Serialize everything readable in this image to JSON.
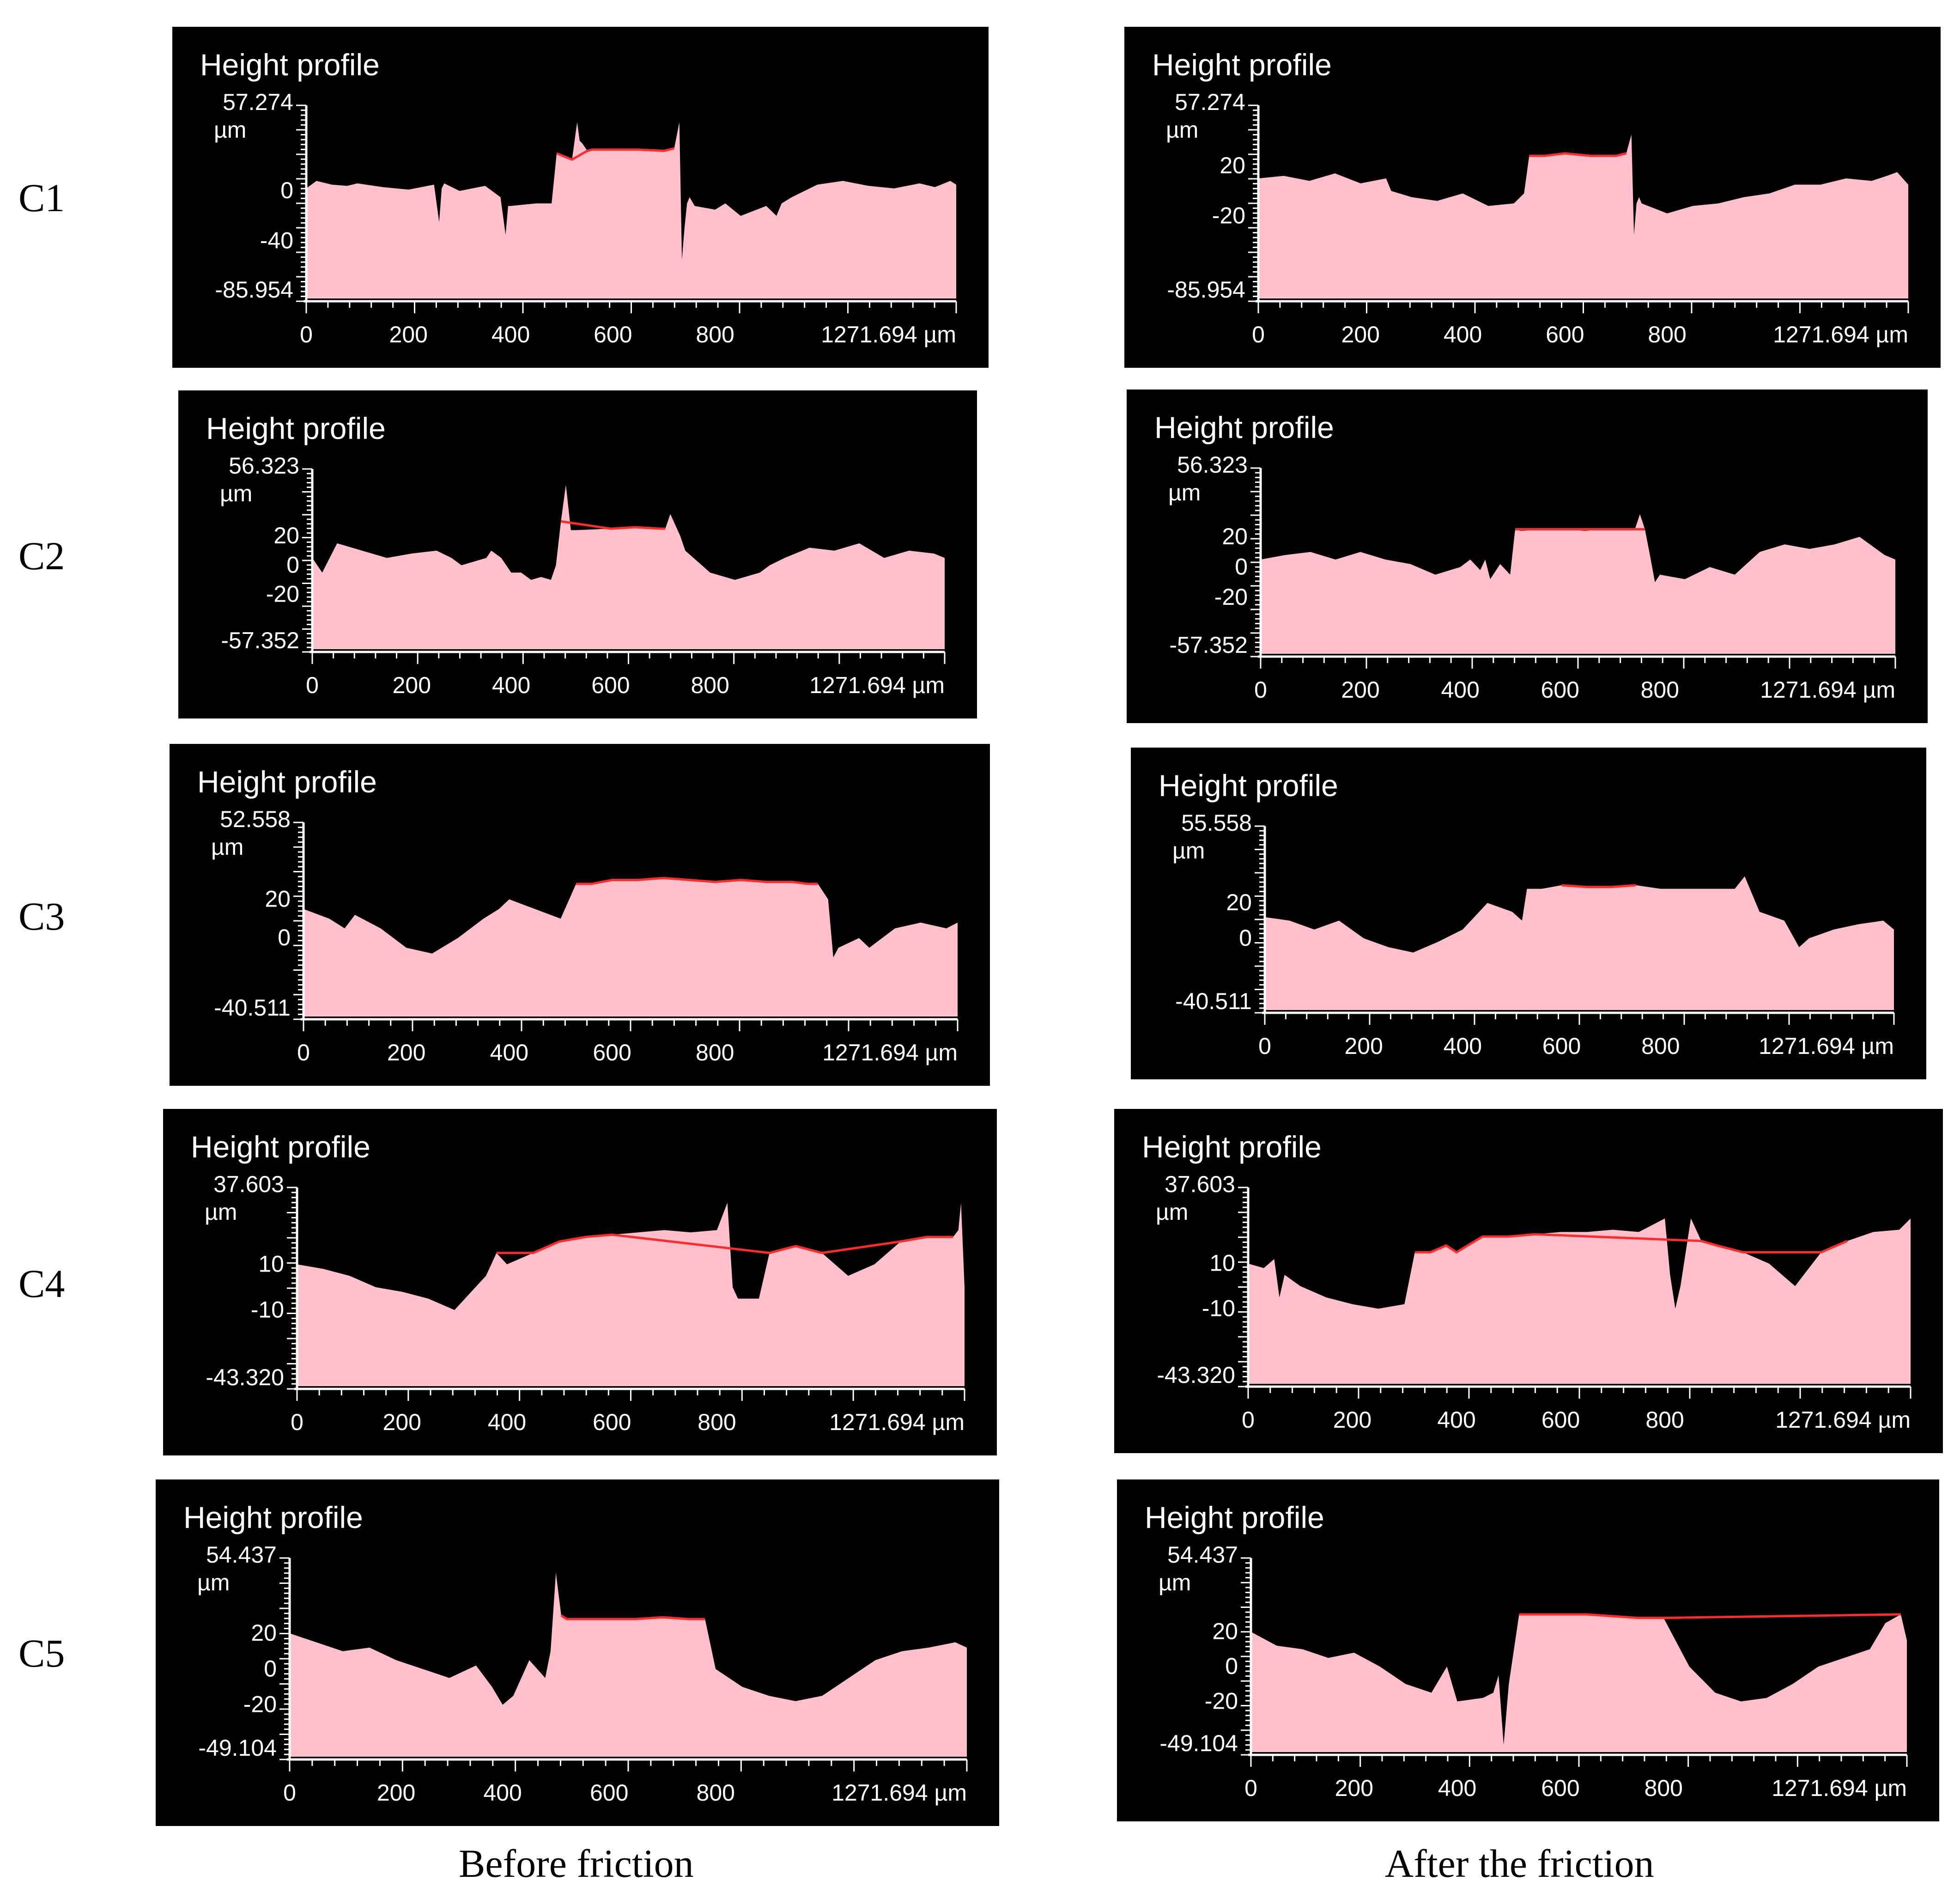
{
  "captions": {
    "before": "Before friction",
    "after": "After the friction"
  },
  "rows": [
    "C1",
    "C2",
    "C3",
    "C4",
    "C5"
  ],
  "colors": {
    "background": "#000000",
    "fill": "#ffc0cb",
    "trace": "#ff2a2a",
    "axis": "#ffffff"
  },
  "chart_data": [
    {
      "id": "c1-before",
      "row": "C1",
      "column": "Before friction",
      "type": "area",
      "title": "Height profile",
      "xlim": [
        0,
        1271.694
      ],
      "x_ticks": [
        "0",
        "200",
        "400",
        "600",
        "800",
        "1271.694 µm"
      ],
      "ylim": [
        -85.954,
        57.274
      ],
      "y_ticks": [
        "57.274",
        "0",
        "-40",
        "-85.954"
      ],
      "y_unit": "µm",
      "x": [
        0,
        20,
        50,
        80,
        100,
        150,
        200,
        250,
        260,
        265,
        270,
        300,
        350,
        380,
        390,
        395,
        400,
        450,
        480,
        490,
        520,
        530,
        535,
        540,
        550,
        560,
        600,
        650,
        700,
        720,
        730,
        735,
        740,
        745,
        750,
        760,
        800,
        820,
        850,
        900,
        920,
        930,
        950,
        1000,
        1050,
        1100,
        1150,
        1200,
        1230,
        1260,
        1271.694
      ],
      "y": [
        2,
        8,
        5,
        4,
        6,
        3,
        1,
        5,
        -25,
        2,
        6,
        0,
        4,
        -5,
        -35,
        -12,
        -12,
        -10,
        -10,
        30,
        25,
        55,
        40,
        38,
        32,
        33,
        33,
        33,
        32,
        34,
        55,
        -55,
        -30,
        -10,
        -5,
        -12,
        -15,
        -10,
        -20,
        -12,
        -20,
        -10,
        -5,
        5,
        8,
        4,
        2,
        6,
        3,
        8,
        5
      ]
    },
    {
      "id": "c1-after",
      "row": "C1",
      "column": "After the friction",
      "type": "area",
      "title": "Height profile",
      "xlim": [
        0,
        1271.694
      ],
      "x_ticks": [
        "0",
        "200",
        "400",
        "600",
        "800",
        "1271.694 µm"
      ],
      "ylim": [
        -85.954,
        57.274
      ],
      "y_ticks": [
        "57.274",
        "20",
        "-20",
        "-85.954"
      ],
      "y_unit": "µm",
      "x": [
        0,
        50,
        100,
        150,
        200,
        250,
        260,
        300,
        350,
        400,
        450,
        500,
        520,
        530,
        560,
        600,
        650,
        700,
        720,
        730,
        735,
        740,
        745,
        750,
        800,
        850,
        900,
        950,
        1000,
        1050,
        1100,
        1150,
        1200,
        1230,
        1250,
        1271.694
      ],
      "y": [
        10,
        12,
        8,
        14,
        6,
        10,
        0,
        -5,
        -8,
        -2,
        -12,
        -10,
        -2,
        28,
        28,
        30,
        28,
        28,
        30,
        45,
        -35,
        -10,
        -5,
        -10,
        -18,
        -12,
        -10,
        -5,
        -2,
        5,
        5,
        10,
        8,
        12,
        15,
        5
      ]
    },
    {
      "id": "c2-before",
      "row": "C2",
      "column": "Before friction",
      "type": "area",
      "title": "Height profile",
      "xlim": [
        0,
        1271.694
      ],
      "x_ticks": [
        "0",
        "200",
        "400",
        "600",
        "800",
        "1271.694 µm"
      ],
      "ylim": [
        -57.352,
        56.323
      ],
      "y_ticks": [
        "56.323",
        "20",
        "0",
        "-20",
        "-57.352"
      ],
      "y_unit": "µm",
      "x": [
        0,
        20,
        50,
        100,
        150,
        200,
        250,
        280,
        300,
        350,
        360,
        380,
        400,
        420,
        440,
        460,
        480,
        490,
        500,
        510,
        520,
        530,
        600,
        650,
        700,
        710,
        720,
        740,
        750,
        800,
        850,
        900,
        920,
        950,
        1000,
        1050,
        1100,
        1150,
        1200,
        1250,
        1271.694
      ],
      "y": [
        5,
        -5,
        15,
        10,
        5,
        8,
        10,
        5,
        0,
        5,
        10,
        5,
        -5,
        -5,
        -10,
        -8,
        -10,
        0,
        30,
        55,
        24,
        24,
        25,
        26,
        25,
        25,
        35,
        20,
        10,
        -5,
        -10,
        -5,
        0,
        5,
        12,
        10,
        15,
        5,
        10,
        8,
        5
      ]
    },
    {
      "id": "c2-after",
      "row": "C2",
      "column": "After the friction",
      "type": "area",
      "title": "Height profile",
      "xlim": [
        0,
        1271.694
      ],
      "x_ticks": [
        "0",
        "200",
        "400",
        "600",
        "800",
        "1271.694 µm"
      ],
      "ylim": [
        -57.352,
        56.323
      ],
      "y_ticks": [
        "56.323",
        "20",
        "0",
        "-20",
        "-57.352"
      ],
      "y_unit": "µm",
      "x": [
        0,
        50,
        100,
        150,
        200,
        250,
        300,
        350,
        400,
        420,
        440,
        450,
        460,
        480,
        500,
        510,
        520,
        600,
        650,
        700,
        750,
        760,
        770,
        780,
        790,
        800,
        850,
        900,
        950,
        1000,
        1050,
        1100,
        1150,
        1200,
        1250,
        1271.694
      ],
      "y": [
        5,
        8,
        10,
        5,
        10,
        5,
        2,
        -5,
        0,
        5,
        -2,
        5,
        -8,
        2,
        -5,
        25,
        24,
        25,
        24,
        25,
        25,
        35,
        25,
        8,
        -10,
        -5,
        -8,
        0,
        -5,
        10,
        15,
        12,
        15,
        20,
        8,
        5
      ]
    },
    {
      "id": "c3-before",
      "row": "C3",
      "column": "Before friction",
      "type": "area",
      "title": "Height profile",
      "xlim": [
        0,
        1271.694
      ],
      "x_ticks": [
        "0",
        "200",
        "400",
        "600",
        "800",
        "1271.694 µm"
      ],
      "ylim": [
        -40.511,
        52.558
      ],
      "y_ticks": [
        "52.558",
        "20",
        "0",
        "-40.511"
      ],
      "y_unit": "µm",
      "x": [
        0,
        50,
        80,
        100,
        150,
        200,
        250,
        300,
        350,
        380,
        400,
        450,
        500,
        530,
        560,
        600,
        650,
        700,
        750,
        800,
        850,
        900,
        950,
        980,
        1000,
        1020,
        1030,
        1040,
        1080,
        1100,
        1150,
        1200,
        1250,
        1271.694
      ],
      "y": [
        15,
        10,
        5,
        12,
        5,
        -5,
        -8,
        0,
        10,
        15,
        20,
        15,
        10,
        28,
        28,
        30,
        30,
        31,
        30,
        29,
        30,
        29,
        29,
        28,
        28,
        20,
        -10,
        -5,
        0,
        -5,
        5,
        8,
        5,
        8
      ]
    },
    {
      "id": "c3-after",
      "row": "C3",
      "column": "After the friction",
      "type": "area",
      "title": "Height profile",
      "xlim": [
        0,
        1271.694
      ],
      "x_ticks": [
        "0",
        "200",
        "400",
        "600",
        "800",
        "1271.694 µm"
      ],
      "ylim": [
        -40.511,
        55.558
      ],
      "y_ticks": [
        "55.558",
        "20",
        "0",
        "-40.511"
      ],
      "y_unit": "µm",
      "x": [
        0,
        50,
        100,
        150,
        200,
        250,
        300,
        350,
        400,
        450,
        500,
        520,
        530,
        560,
        600,
        650,
        700,
        750,
        800,
        850,
        900,
        950,
        970,
        1000,
        1050,
        1080,
        1100,
        1150,
        1200,
        1250,
        1271.694
      ],
      "y": [
        12,
        10,
        5,
        10,
        0,
        -5,
        -8,
        -2,
        5,
        20,
        15,
        10,
        28,
        28,
        30,
        29,
        29,
        30,
        28,
        28,
        28,
        28,
        35,
        15,
        10,
        -5,
        0,
        5,
        8,
        10,
        5
      ]
    },
    {
      "id": "c4-before",
      "row": "C4",
      "column": "Before friction",
      "type": "area",
      "title": "Height profile",
      "xlim": [
        0,
        1271.694
      ],
      "x_ticks": [
        "0",
        "200",
        "400",
        "600",
        "800",
        "1271.694 µm"
      ],
      "ylim": [
        -43.32,
        37.603
      ],
      "y_ticks": [
        "37.603",
        "10",
        "-10",
        "-43.320"
      ],
      "y_unit": "µm",
      "x": [
        0,
        50,
        100,
        150,
        200,
        250,
        280,
        300,
        320,
        340,
        360,
        380,
        400,
        450,
        500,
        550,
        600,
        650,
        700,
        750,
        800,
        820,
        830,
        840,
        880,
        900,
        950,
        1000,
        1050,
        1100,
        1150,
        1200,
        1250,
        1260,
        1265,
        1271.694
      ],
      "y": [
        10,
        8,
        5,
        0,
        -2,
        -5,
        -8,
        -10,
        -5,
        0,
        5,
        15,
        10,
        15,
        20,
        22,
        23,
        24,
        25,
        24,
        25,
        37,
        0,
        -5,
        -5,
        15,
        18,
        15,
        5,
        10,
        20,
        22,
        22,
        25,
        37,
        0
      ]
    },
    {
      "id": "c4-after",
      "row": "C4",
      "column": "After the friction",
      "type": "area",
      "title": "Height profile",
      "xlim": [
        0,
        1271.694
      ],
      "x_ticks": [
        "0",
        "200",
        "400",
        "600",
        "800",
        "1271.694 µm"
      ],
      "ylim": [
        -43.32,
        37.603
      ],
      "y_ticks": [
        "37.603",
        "10",
        "-10",
        "-43.320"
      ],
      "y_unit": "µm",
      "x": [
        0,
        30,
        50,
        60,
        70,
        100,
        150,
        200,
        250,
        300,
        320,
        350,
        380,
        400,
        450,
        500,
        550,
        600,
        650,
        700,
        750,
        800,
        810,
        820,
        830,
        850,
        870,
        900,
        950,
        1000,
        1050,
        1100,
        1150,
        1200,
        1250,
        1271.694
      ],
      "y": [
        10,
        8,
        12,
        -5,
        5,
        0,
        -5,
        -8,
        -10,
        -8,
        15,
        15,
        18,
        15,
        22,
        22,
        23,
        24,
        24,
        25,
        24,
        30,
        5,
        -10,
        0,
        30,
        20,
        18,
        15,
        10,
        0,
        15,
        20,
        24,
        25,
        30
      ]
    },
    {
      "id": "c5-before",
      "row": "C5",
      "column": "Before friction",
      "type": "area",
      "title": "Height profile",
      "xlim": [
        0,
        1271.694
      ],
      "x_ticks": [
        "0",
        "200",
        "400",
        "600",
        "800",
        "1271.694 µm"
      ],
      "ylim": [
        -49.104,
        54.437
      ],
      "y_ticks": [
        "54.437",
        "20",
        "0",
        "-20",
        "-49.104"
      ],
      "y_unit": "µm",
      "x": [
        0,
        50,
        100,
        150,
        200,
        250,
        300,
        350,
        380,
        400,
        420,
        450,
        480,
        490,
        500,
        510,
        520,
        550,
        600,
        650,
        700,
        750,
        780,
        800,
        850,
        900,
        950,
        1000,
        1050,
        1100,
        1150,
        1200,
        1250,
        1271.694
      ],
      "y": [
        20,
        15,
        10,
        12,
        5,
        0,
        -5,
        2,
        -10,
        -20,
        -15,
        5,
        -5,
        10,
        54,
        30,
        28,
        28,
        28,
        28,
        29,
        28,
        28,
        0,
        -10,
        -15,
        -18,
        -15,
        -5,
        5,
        10,
        12,
        15,
        12
      ]
    },
    {
      "id": "c5-after",
      "row": "C5",
      "column": "After the friction",
      "type": "area",
      "title": "Height profile",
      "xlim": [
        0,
        1271.694
      ],
      "x_ticks": [
        "0",
        "200",
        "400",
        "600",
        "800",
        "1271.694 µm"
      ],
      "ylim": [
        -49.104,
        54.437
      ],
      "y_ticks": [
        "54.437",
        "20",
        "0",
        "-20",
        "-49.104"
      ],
      "y_unit": "µm",
      "x": [
        0,
        50,
        100,
        150,
        200,
        250,
        300,
        350,
        380,
        400,
        450,
        470,
        480,
        490,
        500,
        520,
        550,
        600,
        650,
        700,
        750,
        800,
        850,
        900,
        950,
        1000,
        1050,
        1100,
        1150,
        1200,
        1230,
        1260,
        1271.694
      ],
      "y": [
        20,
        12,
        10,
        5,
        8,
        0,
        -10,
        -15,
        0,
        -20,
        -18,
        -15,
        -5,
        -45,
        -10,
        30,
        30,
        30,
        30,
        29,
        28,
        28,
        0,
        -15,
        -20,
        -18,
        -10,
        0,
        5,
        10,
        25,
        30,
        15
      ]
    }
  ]
}
